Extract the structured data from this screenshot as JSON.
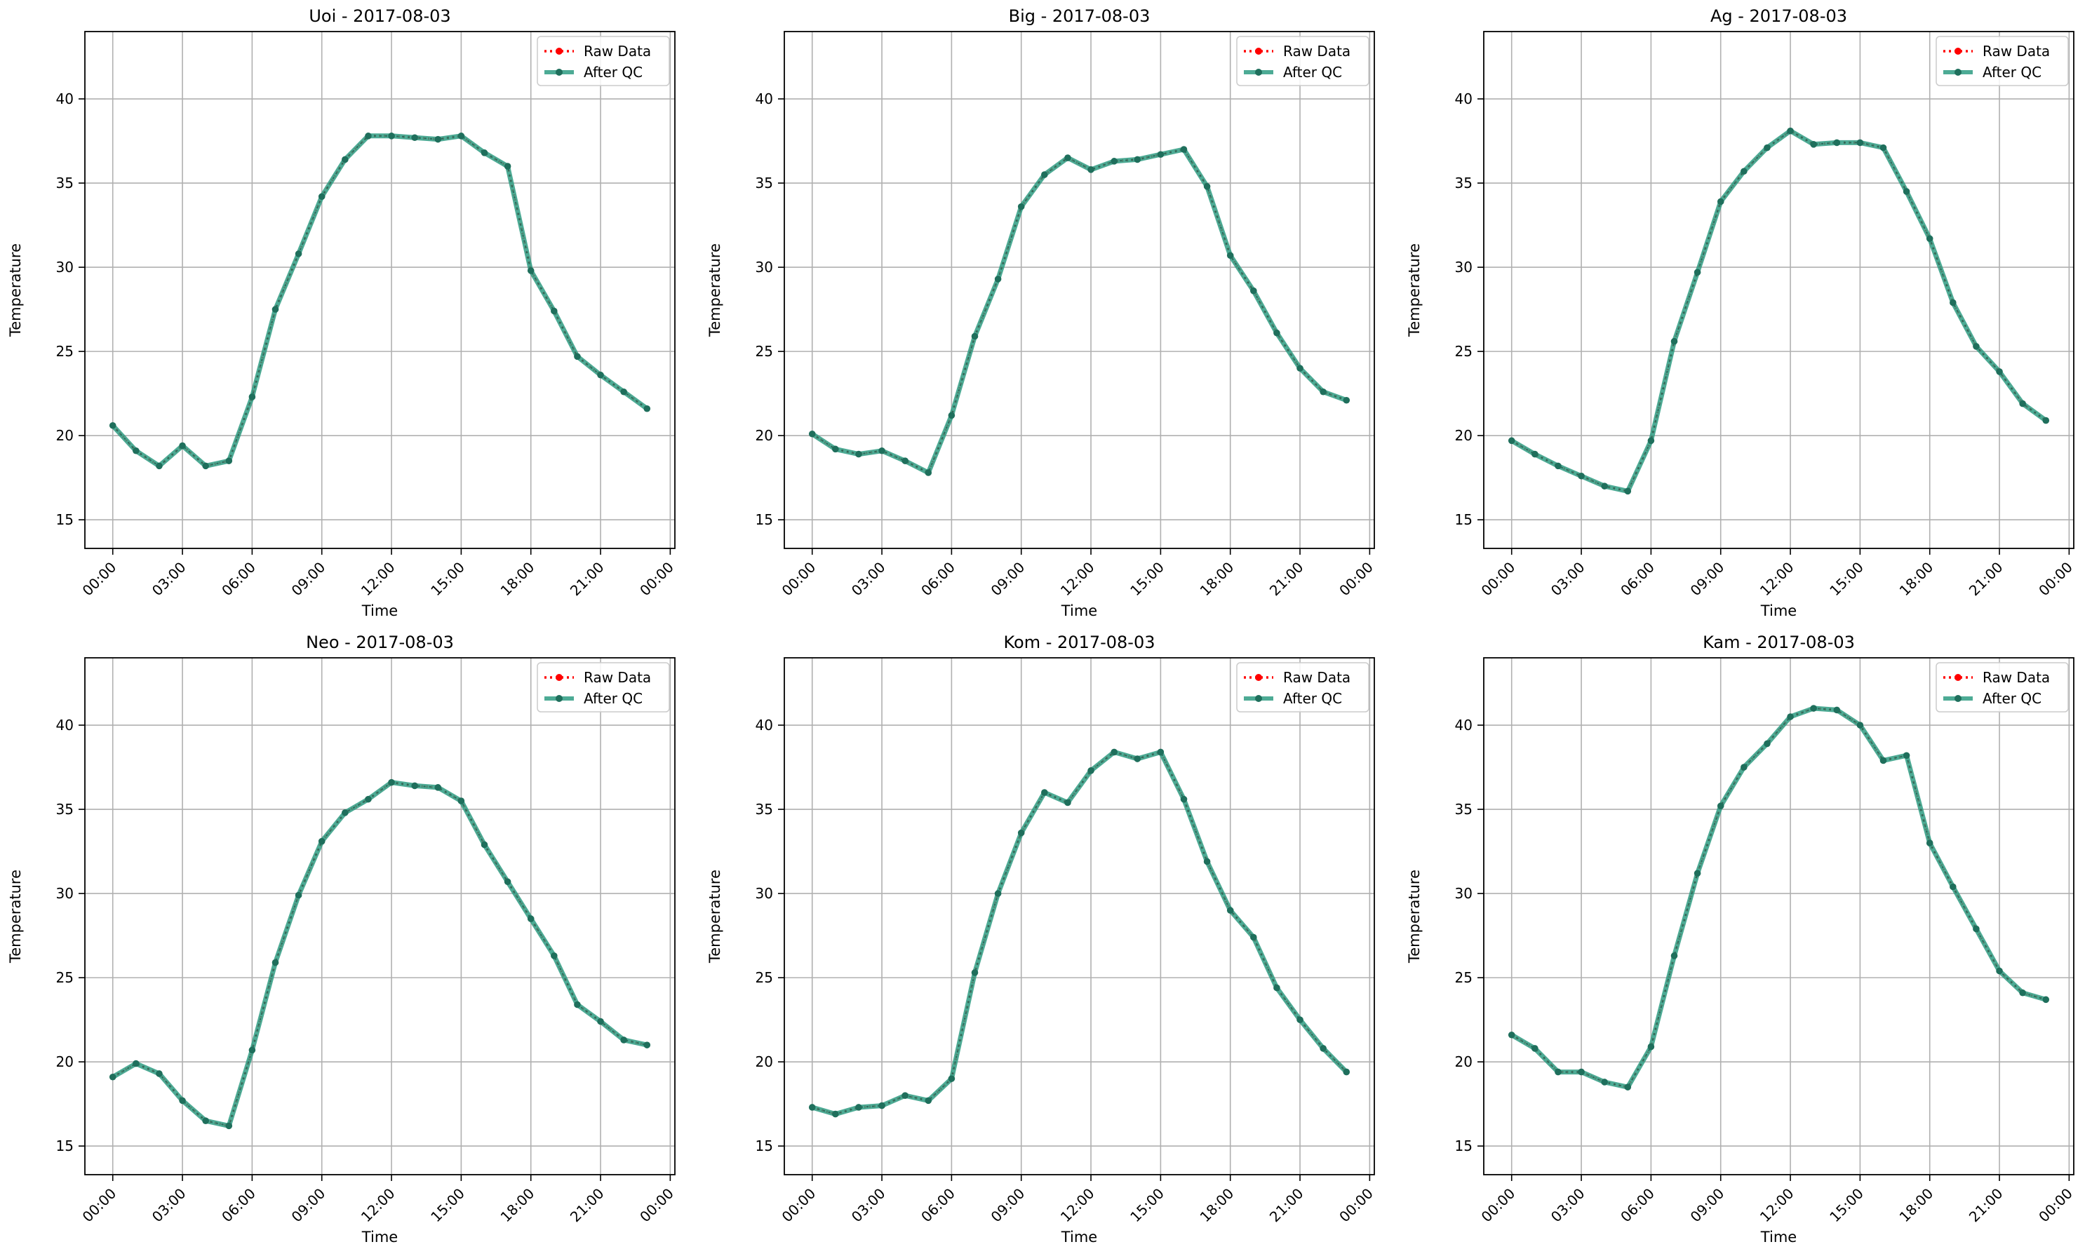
{
  "legend": {
    "raw_label": "Raw Data",
    "qc_label": "After QC"
  },
  "colors": {
    "raw": "#ff0000",
    "qc": "#2e9c82",
    "qc_marker": "#1f6f5c",
    "grid": "#b0b0b0",
    "axes": "#000000"
  },
  "chart_data": [
    {
      "type": "line",
      "title": "Uoi - 2017-08-03",
      "xlabel": "Time",
      "ylabel": "Temperature",
      "xticks": [
        "00:00",
        "03:00",
        "06:00",
        "09:00",
        "12:00",
        "15:00",
        "18:00",
        "21:00",
        "00:00"
      ],
      "yticks": [
        15,
        20,
        25,
        30,
        35,
        40
      ],
      "ylim": [
        13.3,
        44.0
      ],
      "xlim_hours": [
        -1.2,
        24.2
      ],
      "grid": true,
      "legend": "top-right",
      "x_hours": [
        0,
        1,
        2,
        3,
        4,
        5,
        6,
        7,
        8,
        9,
        10,
        11,
        12,
        13,
        14,
        15,
        16,
        17,
        18,
        19,
        20,
        21,
        22,
        23
      ],
      "series": [
        {
          "name": "Raw Data",
          "values": [
            20.6,
            19.1,
            18.2,
            19.4,
            18.2,
            18.5,
            22.3,
            27.5,
            30.8,
            34.2,
            36.4,
            37.8,
            37.8,
            37.7,
            37.6,
            37.8,
            36.8,
            36.0,
            29.8,
            27.4,
            24.7,
            23.6,
            22.6,
            21.6
          ]
        },
        {
          "name": "After QC",
          "values": [
            20.6,
            19.1,
            18.2,
            19.4,
            18.2,
            18.5,
            22.3,
            27.5,
            30.8,
            34.2,
            36.4,
            37.8,
            37.8,
            37.7,
            37.6,
            37.8,
            36.8,
            36.0,
            29.8,
            27.4,
            24.7,
            23.6,
            22.6,
            21.6
          ]
        }
      ]
    },
    {
      "type": "line",
      "title": "Big - 2017-08-03",
      "xlabel": "Time",
      "ylabel": "Temperature",
      "xticks": [
        "00:00",
        "03:00",
        "06:00",
        "09:00",
        "12:00",
        "15:00",
        "18:00",
        "21:00",
        "00:00"
      ],
      "yticks": [
        15,
        20,
        25,
        30,
        35,
        40
      ],
      "ylim": [
        13.3,
        44.0
      ],
      "xlim_hours": [
        -1.2,
        24.2
      ],
      "grid": true,
      "legend": "top-right",
      "x_hours": [
        0,
        1,
        2,
        3,
        4,
        5,
        6,
        7,
        8,
        9,
        10,
        11,
        12,
        13,
        14,
        15,
        16,
        17,
        18,
        19,
        20,
        21,
        22,
        23
      ],
      "series": [
        {
          "name": "Raw Data",
          "values": [
            20.1,
            19.2,
            18.9,
            19.1,
            18.5,
            17.8,
            21.2,
            25.9,
            29.3,
            33.6,
            35.5,
            36.5,
            35.8,
            36.3,
            36.4,
            36.7,
            37.0,
            34.8,
            30.7,
            28.6,
            26.1,
            24.0,
            22.6,
            22.1
          ]
        },
        {
          "name": "After QC",
          "values": [
            20.1,
            19.2,
            18.9,
            19.1,
            18.5,
            17.8,
            21.2,
            25.9,
            29.3,
            33.6,
            35.5,
            36.5,
            35.8,
            36.3,
            36.4,
            36.7,
            37.0,
            34.8,
            30.7,
            28.6,
            26.1,
            24.0,
            22.6,
            22.1
          ]
        }
      ]
    },
    {
      "type": "line",
      "title": "Ag - 2017-08-03",
      "xlabel": "Time",
      "ylabel": "Temperature",
      "xticks": [
        "00:00",
        "03:00",
        "06:00",
        "09:00",
        "12:00",
        "15:00",
        "18:00",
        "21:00",
        "00:00"
      ],
      "yticks": [
        15,
        20,
        25,
        30,
        35,
        40
      ],
      "ylim": [
        13.3,
        44.0
      ],
      "xlim_hours": [
        -1.2,
        24.2
      ],
      "grid": true,
      "legend": "top-right",
      "x_hours": [
        0,
        1,
        2,
        3,
        4,
        5,
        6,
        7,
        8,
        9,
        10,
        11,
        12,
        13,
        14,
        15,
        16,
        17,
        18,
        19,
        20,
        21,
        22,
        23
      ],
      "series": [
        {
          "name": "Raw Data",
          "values": [
            19.7,
            18.9,
            18.2,
            17.6,
            17.0,
            16.7,
            19.7,
            25.6,
            29.7,
            33.9,
            35.7,
            37.1,
            38.1,
            37.3,
            37.4,
            37.4,
            37.1,
            34.5,
            31.7,
            27.9,
            25.3,
            23.8,
            21.9,
            20.9
          ]
        },
        {
          "name": "After QC",
          "values": [
            19.7,
            18.9,
            18.2,
            17.6,
            17.0,
            16.7,
            19.7,
            25.6,
            29.7,
            33.9,
            35.7,
            37.1,
            38.1,
            37.3,
            37.4,
            37.4,
            37.1,
            34.5,
            31.7,
            27.9,
            25.3,
            23.8,
            21.9,
            20.9
          ]
        }
      ]
    },
    {
      "type": "line",
      "title": "Neo - 2017-08-03",
      "xlabel": "Time",
      "ylabel": "Temperature",
      "xticks": [
        "00:00",
        "03:00",
        "06:00",
        "09:00",
        "12:00",
        "15:00",
        "18:00",
        "21:00",
        "00:00"
      ],
      "yticks": [
        15,
        20,
        25,
        30,
        35,
        40
      ],
      "ylim": [
        13.3,
        44.0
      ],
      "xlim_hours": [
        -1.2,
        24.2
      ],
      "grid": true,
      "legend": "top-right",
      "x_hours": [
        0,
        1,
        2,
        3,
        4,
        5,
        6,
        7,
        8,
        9,
        10,
        11,
        12,
        13,
        14,
        15,
        16,
        17,
        18,
        19,
        20,
        21,
        22,
        23
      ],
      "series": [
        {
          "name": "Raw Data",
          "values": [
            19.1,
            19.9,
            19.3,
            17.7,
            16.5,
            16.2,
            20.7,
            25.9,
            29.9,
            33.1,
            34.8,
            35.6,
            36.6,
            36.4,
            36.3,
            35.5,
            32.9,
            30.7,
            28.5,
            26.3,
            23.4,
            22.4,
            21.3,
            21.0
          ]
        },
        {
          "name": "After QC",
          "values": [
            19.1,
            19.9,
            19.3,
            17.7,
            16.5,
            16.2,
            20.7,
            25.9,
            29.9,
            33.1,
            34.8,
            35.6,
            36.6,
            36.4,
            36.3,
            35.5,
            32.9,
            30.7,
            28.5,
            26.3,
            23.4,
            22.4,
            21.3,
            21.0
          ]
        }
      ]
    },
    {
      "type": "line",
      "title": "Kom - 2017-08-03",
      "xlabel": "Time",
      "ylabel": "Temperature",
      "xticks": [
        "00:00",
        "03:00",
        "06:00",
        "09:00",
        "12:00",
        "15:00",
        "18:00",
        "21:00",
        "00:00"
      ],
      "yticks": [
        15,
        20,
        25,
        30,
        35,
        40
      ],
      "ylim": [
        13.3,
        44.0
      ],
      "xlim_hours": [
        -1.2,
        24.2
      ],
      "grid": true,
      "legend": "top-right",
      "x_hours": [
        0,
        1,
        2,
        3,
        4,
        5,
        6,
        7,
        8,
        9,
        10,
        11,
        12,
        13,
        14,
        15,
        16,
        17,
        18,
        19,
        20,
        21,
        22,
        23
      ],
      "series": [
        {
          "name": "Raw Data",
          "values": [
            17.3,
            16.9,
            17.3,
            17.4,
            18.0,
            17.7,
            19.0,
            25.3,
            30.0,
            33.6,
            36.0,
            35.4,
            37.3,
            38.4,
            38.0,
            38.4,
            35.6,
            31.9,
            29.0,
            27.4,
            24.4,
            22.5,
            20.8,
            19.4
          ]
        },
        {
          "name": "After QC",
          "values": [
            17.3,
            16.9,
            17.3,
            17.4,
            18.0,
            17.7,
            19.0,
            25.3,
            30.0,
            33.6,
            36.0,
            35.4,
            37.3,
            38.4,
            38.0,
            38.4,
            35.6,
            31.9,
            29.0,
            27.4,
            24.4,
            22.5,
            20.8,
            19.4
          ]
        }
      ]
    },
    {
      "type": "line",
      "title": "Kam - 2017-08-03",
      "xlabel": "Time",
      "ylabel": "Temperature",
      "xticks": [
        "00:00",
        "03:00",
        "06:00",
        "09:00",
        "12:00",
        "15:00",
        "18:00",
        "21:00",
        "00:00"
      ],
      "yticks": [
        15,
        20,
        25,
        30,
        35,
        40
      ],
      "ylim": [
        13.3,
        44.0
      ],
      "xlim_hours": [
        -1.2,
        24.2
      ],
      "grid": true,
      "legend": "top-right",
      "x_hours": [
        0,
        1,
        2,
        3,
        4,
        5,
        6,
        7,
        8,
        9,
        10,
        11,
        12,
        13,
        14,
        15,
        16,
        17,
        18,
        19,
        20,
        21,
        22,
        23
      ],
      "series": [
        {
          "name": "Raw Data",
          "values": [
            21.6,
            20.8,
            19.4,
            19.4,
            18.8,
            18.5,
            20.9,
            26.3,
            31.2,
            35.2,
            37.5,
            38.9,
            40.5,
            41.0,
            40.9,
            40.0,
            37.9,
            38.2,
            33.0,
            30.4,
            27.9,
            25.4,
            24.1,
            23.7
          ]
        },
        {
          "name": "After QC",
          "values": [
            21.6,
            20.8,
            19.4,
            19.4,
            18.8,
            18.5,
            20.9,
            26.3,
            31.2,
            35.2,
            37.5,
            38.9,
            40.5,
            41.0,
            40.9,
            40.0,
            37.9,
            38.2,
            33.0,
            30.4,
            27.9,
            25.4,
            24.1,
            23.7
          ]
        }
      ]
    }
  ]
}
